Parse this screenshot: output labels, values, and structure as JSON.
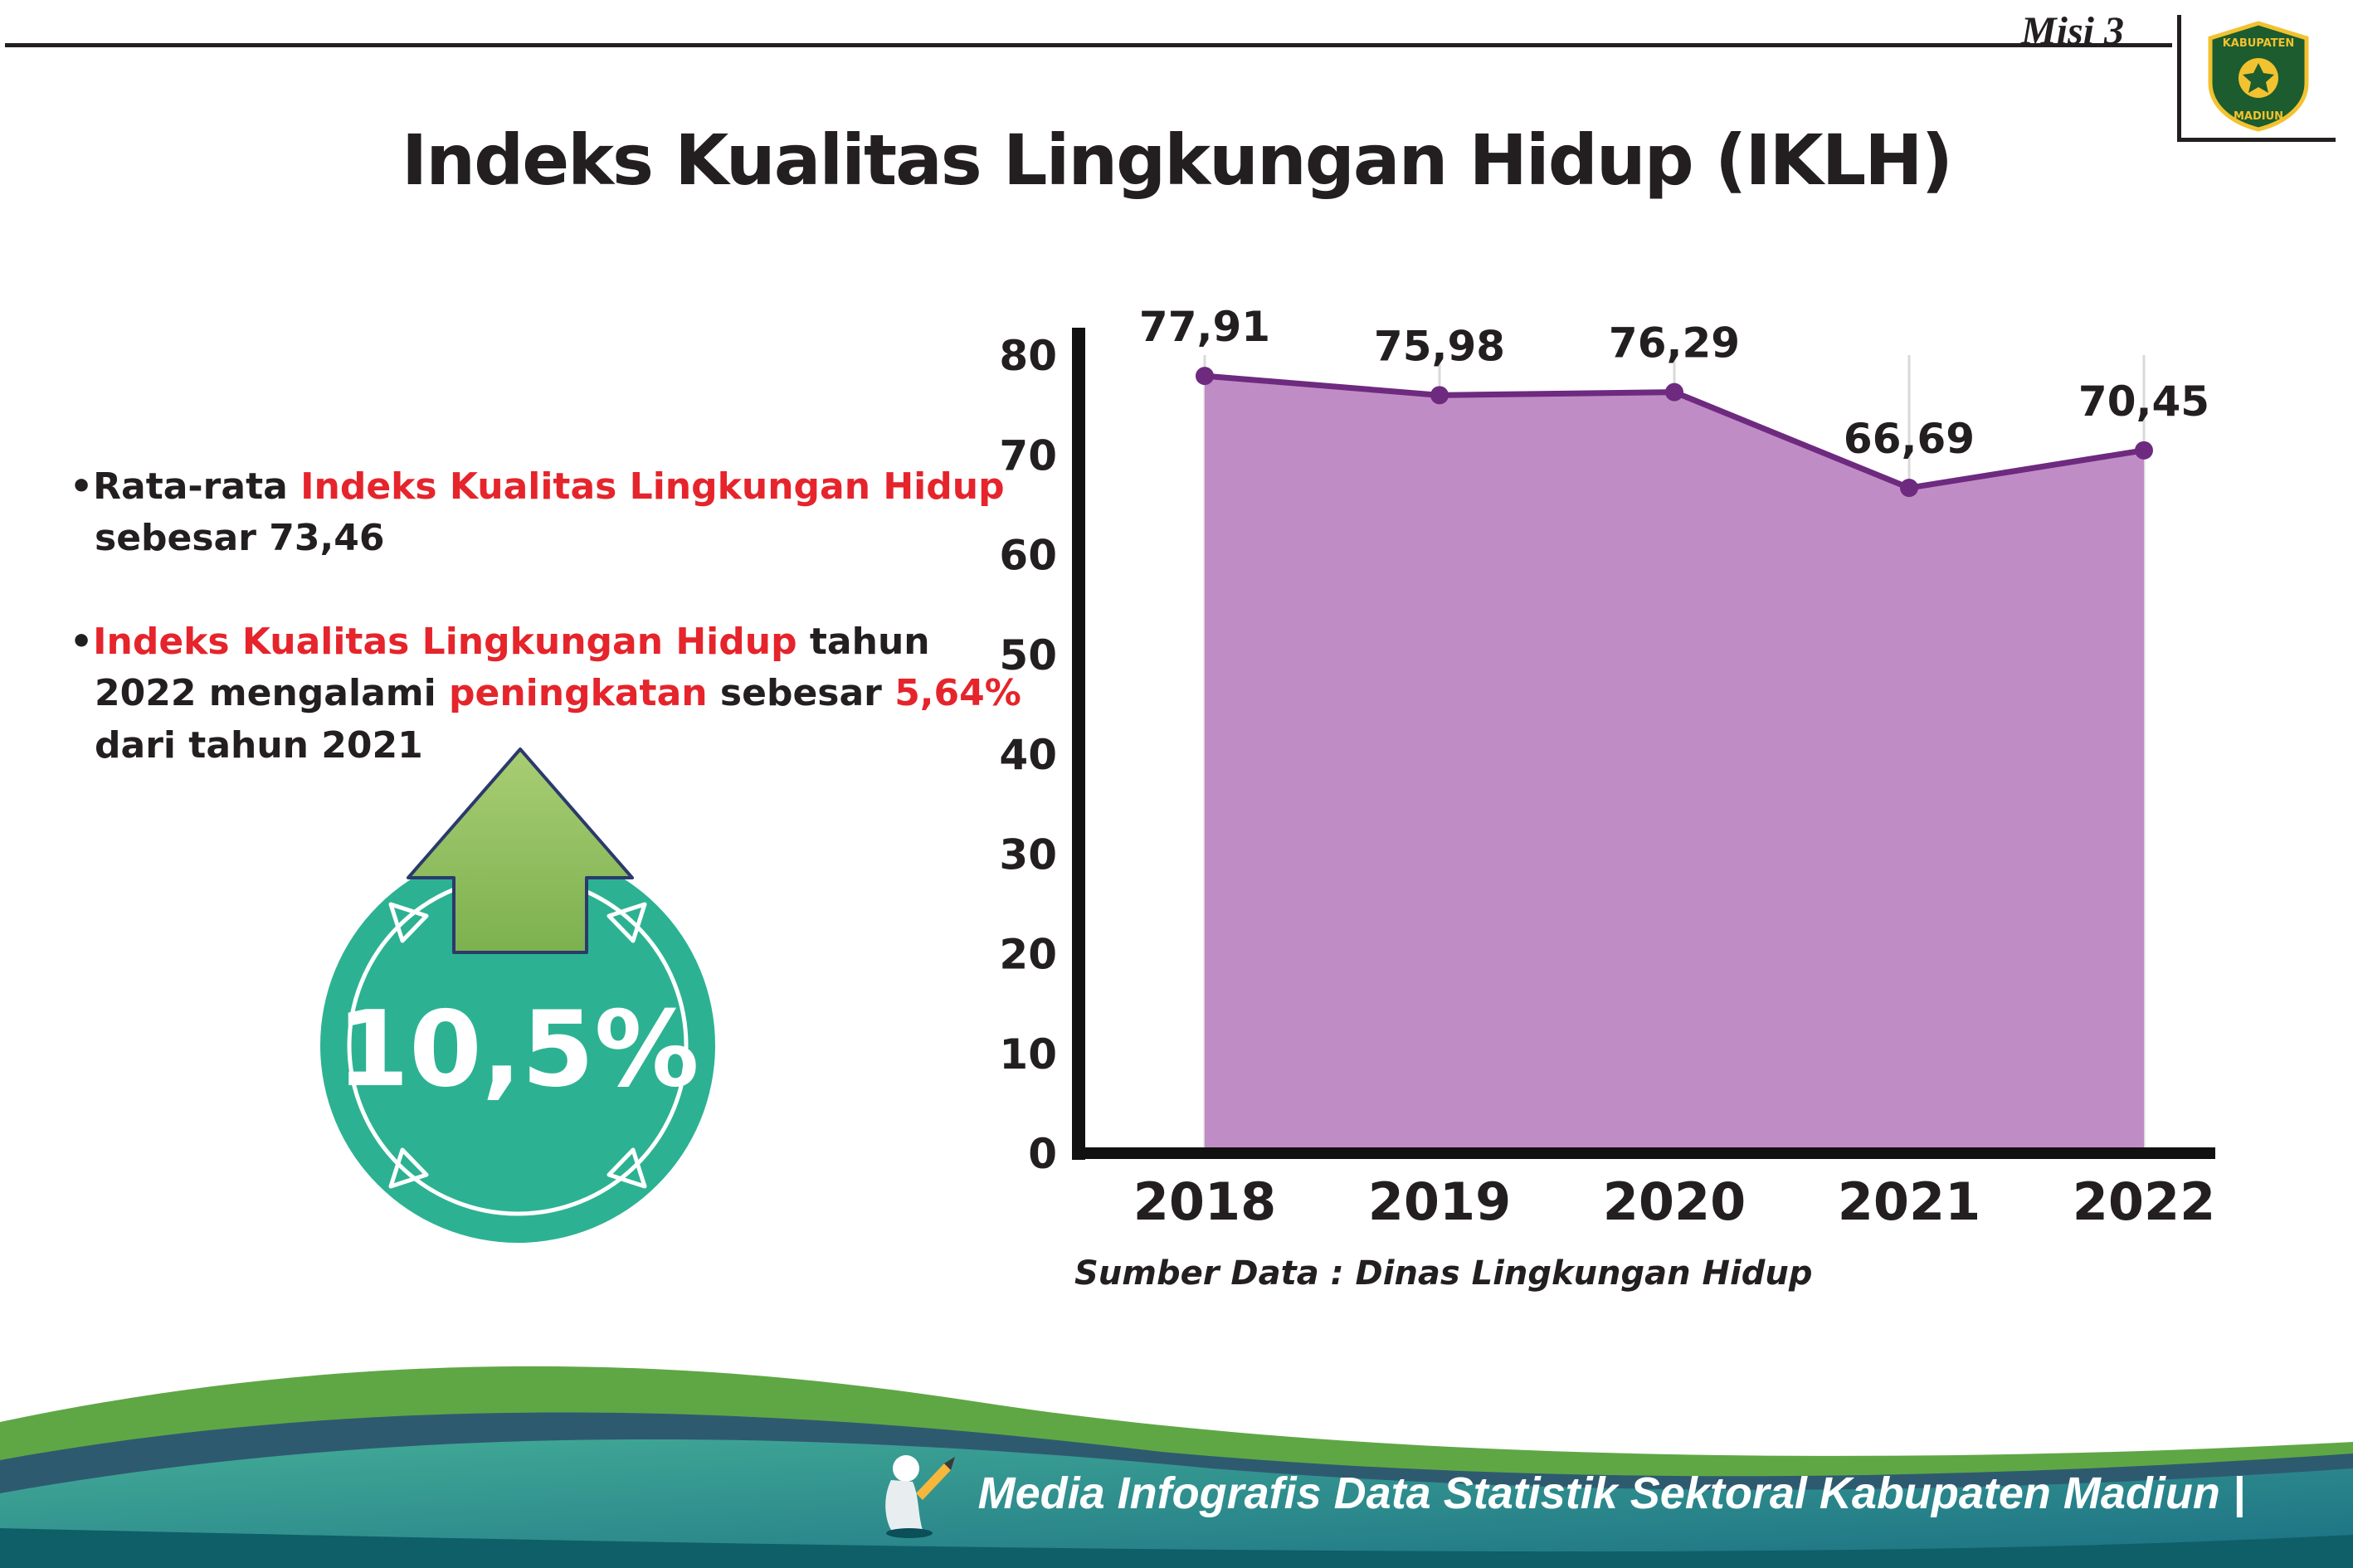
{
  "colors": {
    "ink": "#231f20",
    "red": "#e5242b",
    "badge_teal": "#2cb292",
    "arrow_green": "#8fbe5e",
    "wave_green": "#5fa745",
    "wave_dark": "#2e5a70",
    "wave_teal_a": "#43ac97",
    "wave_teal_b": "#1a6e83",
    "wave_bottom": "#0e5f68"
  },
  "header": {
    "misi_label": "Misi 3",
    "title": "Indeks Kualitas Lingkungan Hidup (IKLH)",
    "logo": {
      "line1": "KABUPATEN",
      "line2": "MADIUN"
    }
  },
  "bullets": {
    "marker": "•",
    "b1": {
      "s1": "Rata-rata ",
      "s2": "Indeks Kualitas Lingkungan Hidup",
      "s3": " sebesar 73,46"
    },
    "b2": {
      "s1": "Indeks Kualitas Lingkungan Hidup",
      "s2": " tahun 2022 mengalami ",
      "s3": "peningkatan",
      "s4": " sebesar ",
      "s5": "5,64%",
      "s6": " dari tahun 2021"
    }
  },
  "badge": {
    "value": "10,5%"
  },
  "chart_data": {
    "type": "area",
    "title": "",
    "categories": [
      "2018",
      "2019",
      "2020",
      "2021",
      "2022"
    ],
    "values": [
      77.91,
      75.98,
      76.29,
      66.69,
      70.45
    ],
    "value_labels": [
      "77,91",
      "75,98",
      "76,29",
      "66,69",
      "70,45"
    ],
    "xlabel": "",
    "ylabel": "",
    "ylim": [
      0,
      80
    ],
    "ytick_step": 10,
    "grid": "vertical-light",
    "legend": "none",
    "source": "Sumber Data : Dinas Lingkungan Hidup",
    "colors": {
      "line": "#6d2a7f",
      "fill": "#c08cc5",
      "axis": "#111111",
      "grid": "#d9d9d9",
      "label": "#231f20"
    }
  },
  "footer": {
    "text": "Media Infografis Data Statistik Sektoral Kabupaten Madiun |"
  }
}
